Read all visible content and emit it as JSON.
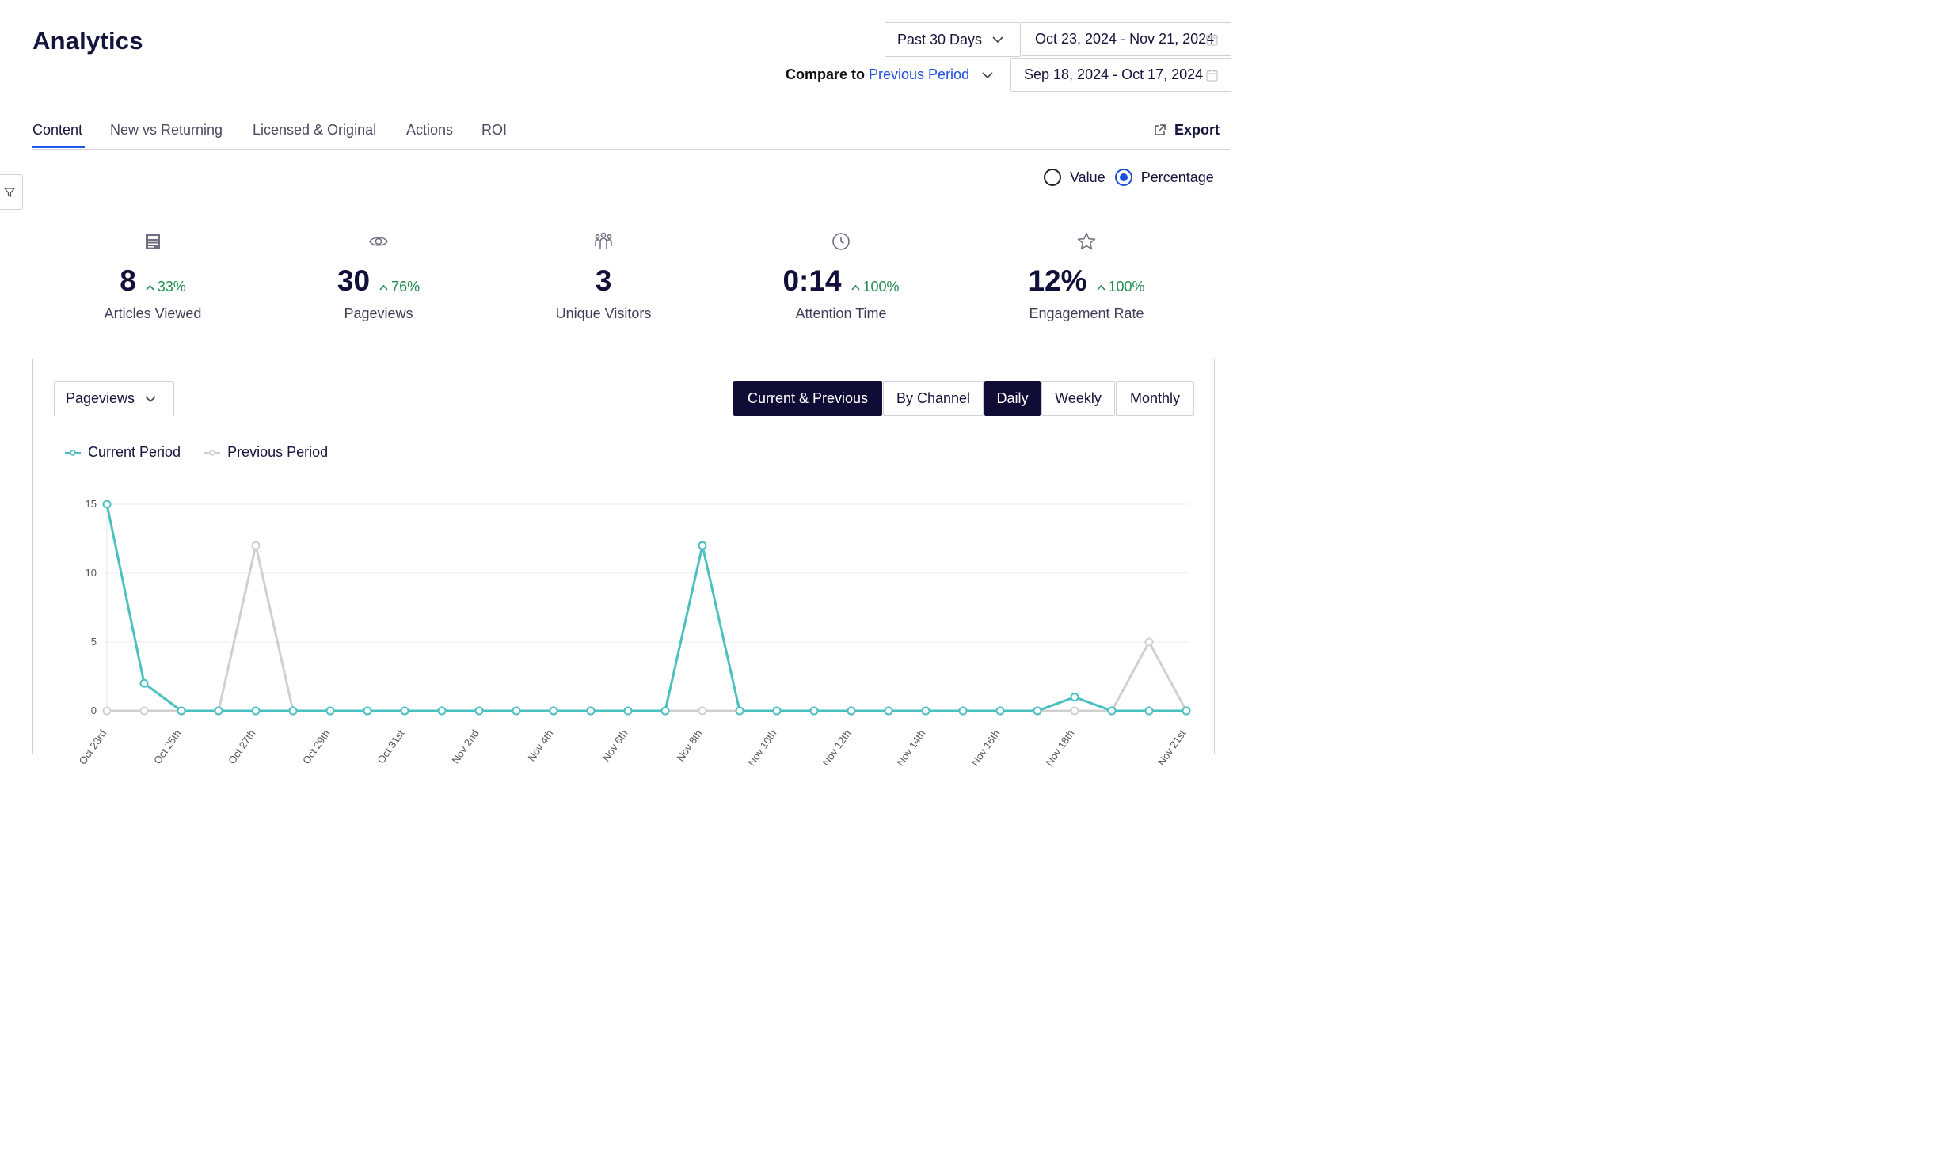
{
  "page": {
    "title": "Analytics"
  },
  "date_controls": {
    "range_label": "Past 30 Days",
    "current_range": "Oct 23, 2024 - Nov 21, 2024",
    "compare_label": "Compare to",
    "compare_option": "Previous Period",
    "previous_range": "Sep 18, 2024 - Oct 17, 2024"
  },
  "tabs": [
    {
      "label": "Content",
      "active": true
    },
    {
      "label": "New vs Returning"
    },
    {
      "label": "Licensed & Original"
    },
    {
      "label": "Actions"
    },
    {
      "label": "ROI"
    }
  ],
  "export_label": "Export",
  "display_mode": {
    "value_label": "Value",
    "percentage_label": "Percentage",
    "selected": "Percentage"
  },
  "stats": [
    {
      "icon": "article-icon",
      "value": "8",
      "change": "33%",
      "label": "Articles Viewed"
    },
    {
      "icon": "eye-icon",
      "value": "30",
      "change": "76%",
      "label": "Pageviews"
    },
    {
      "icon": "users-icon",
      "value": "3",
      "change": "",
      "label": "Unique Visitors"
    },
    {
      "icon": "clock-icon",
      "value": "0:14",
      "change": "100%",
      "label": "Attention Time"
    },
    {
      "icon": "star-icon",
      "value": "12%",
      "change": "100%",
      "label": "Engagement Rate"
    }
  ],
  "chart_panel": {
    "metric": "Pageviews",
    "view_buttons": [
      "Current & Previous",
      "By Channel"
    ],
    "interval_buttons": [
      "Daily",
      "Weekly",
      "Monthly"
    ],
    "active_view": "Current & Previous",
    "active_interval": "Daily"
  },
  "colors": {
    "current": "#4bc0c0",
    "previous": "#d0d0d0",
    "accent": "#2457e8",
    "dark": "#0f0d36",
    "positive": "#1f8a4c"
  },
  "chart_data": {
    "type": "line",
    "x": [
      "Oct 23rd",
      "Oct 24th",
      "Oct 25th",
      "Oct 26th",
      "Oct 27th",
      "Oct 28th",
      "Oct 29th",
      "Oct 30th",
      "Oct 31st",
      "Nov 1st",
      "Nov 2nd",
      "Nov 3rd",
      "Nov 4th",
      "Nov 5th",
      "Nov 6th",
      "Nov 7th",
      "Nov 8th",
      "Nov 9th",
      "Nov 10th",
      "Nov 11th",
      "Nov 12th",
      "Nov 13th",
      "Nov 14th",
      "Nov 15th",
      "Nov 16th",
      "Nov 17th",
      "Nov 18th",
      "Nov 19th",
      "Nov 20th",
      "Nov 21st"
    ],
    "x_tick_labels": [
      "Oct 23rd",
      "Oct 25th",
      "Oct 27th",
      "Oct 29th",
      "Oct 31st",
      "Nov 2nd",
      "Nov 4th",
      "Nov 6th",
      "Nov 8th",
      "Nov 10th",
      "Nov 12th",
      "Nov 14th",
      "Nov 16th",
      "Nov 18th",
      "Nov 21st"
    ],
    "series": [
      {
        "name": "Current Period",
        "values": [
          15,
          2,
          0,
          0,
          0,
          0,
          0,
          0,
          0,
          0,
          0,
          0,
          0,
          0,
          0,
          0,
          12,
          0,
          0,
          0,
          0,
          0,
          0,
          0,
          0,
          0,
          1,
          0,
          0,
          0
        ]
      },
      {
        "name": "Previous Period",
        "values": [
          0,
          0,
          0,
          0,
          12,
          0,
          0,
          0,
          0,
          0,
          0,
          0,
          0,
          0,
          0,
          0,
          0,
          0,
          0,
          0,
          0,
          0,
          0,
          0,
          0,
          0,
          0,
          0,
          5,
          0
        ]
      }
    ],
    "y_ticks": [
      0,
      5,
      10,
      15
    ],
    "ylim": [
      0,
      15
    ],
    "grid": true,
    "legend": "top-left"
  }
}
